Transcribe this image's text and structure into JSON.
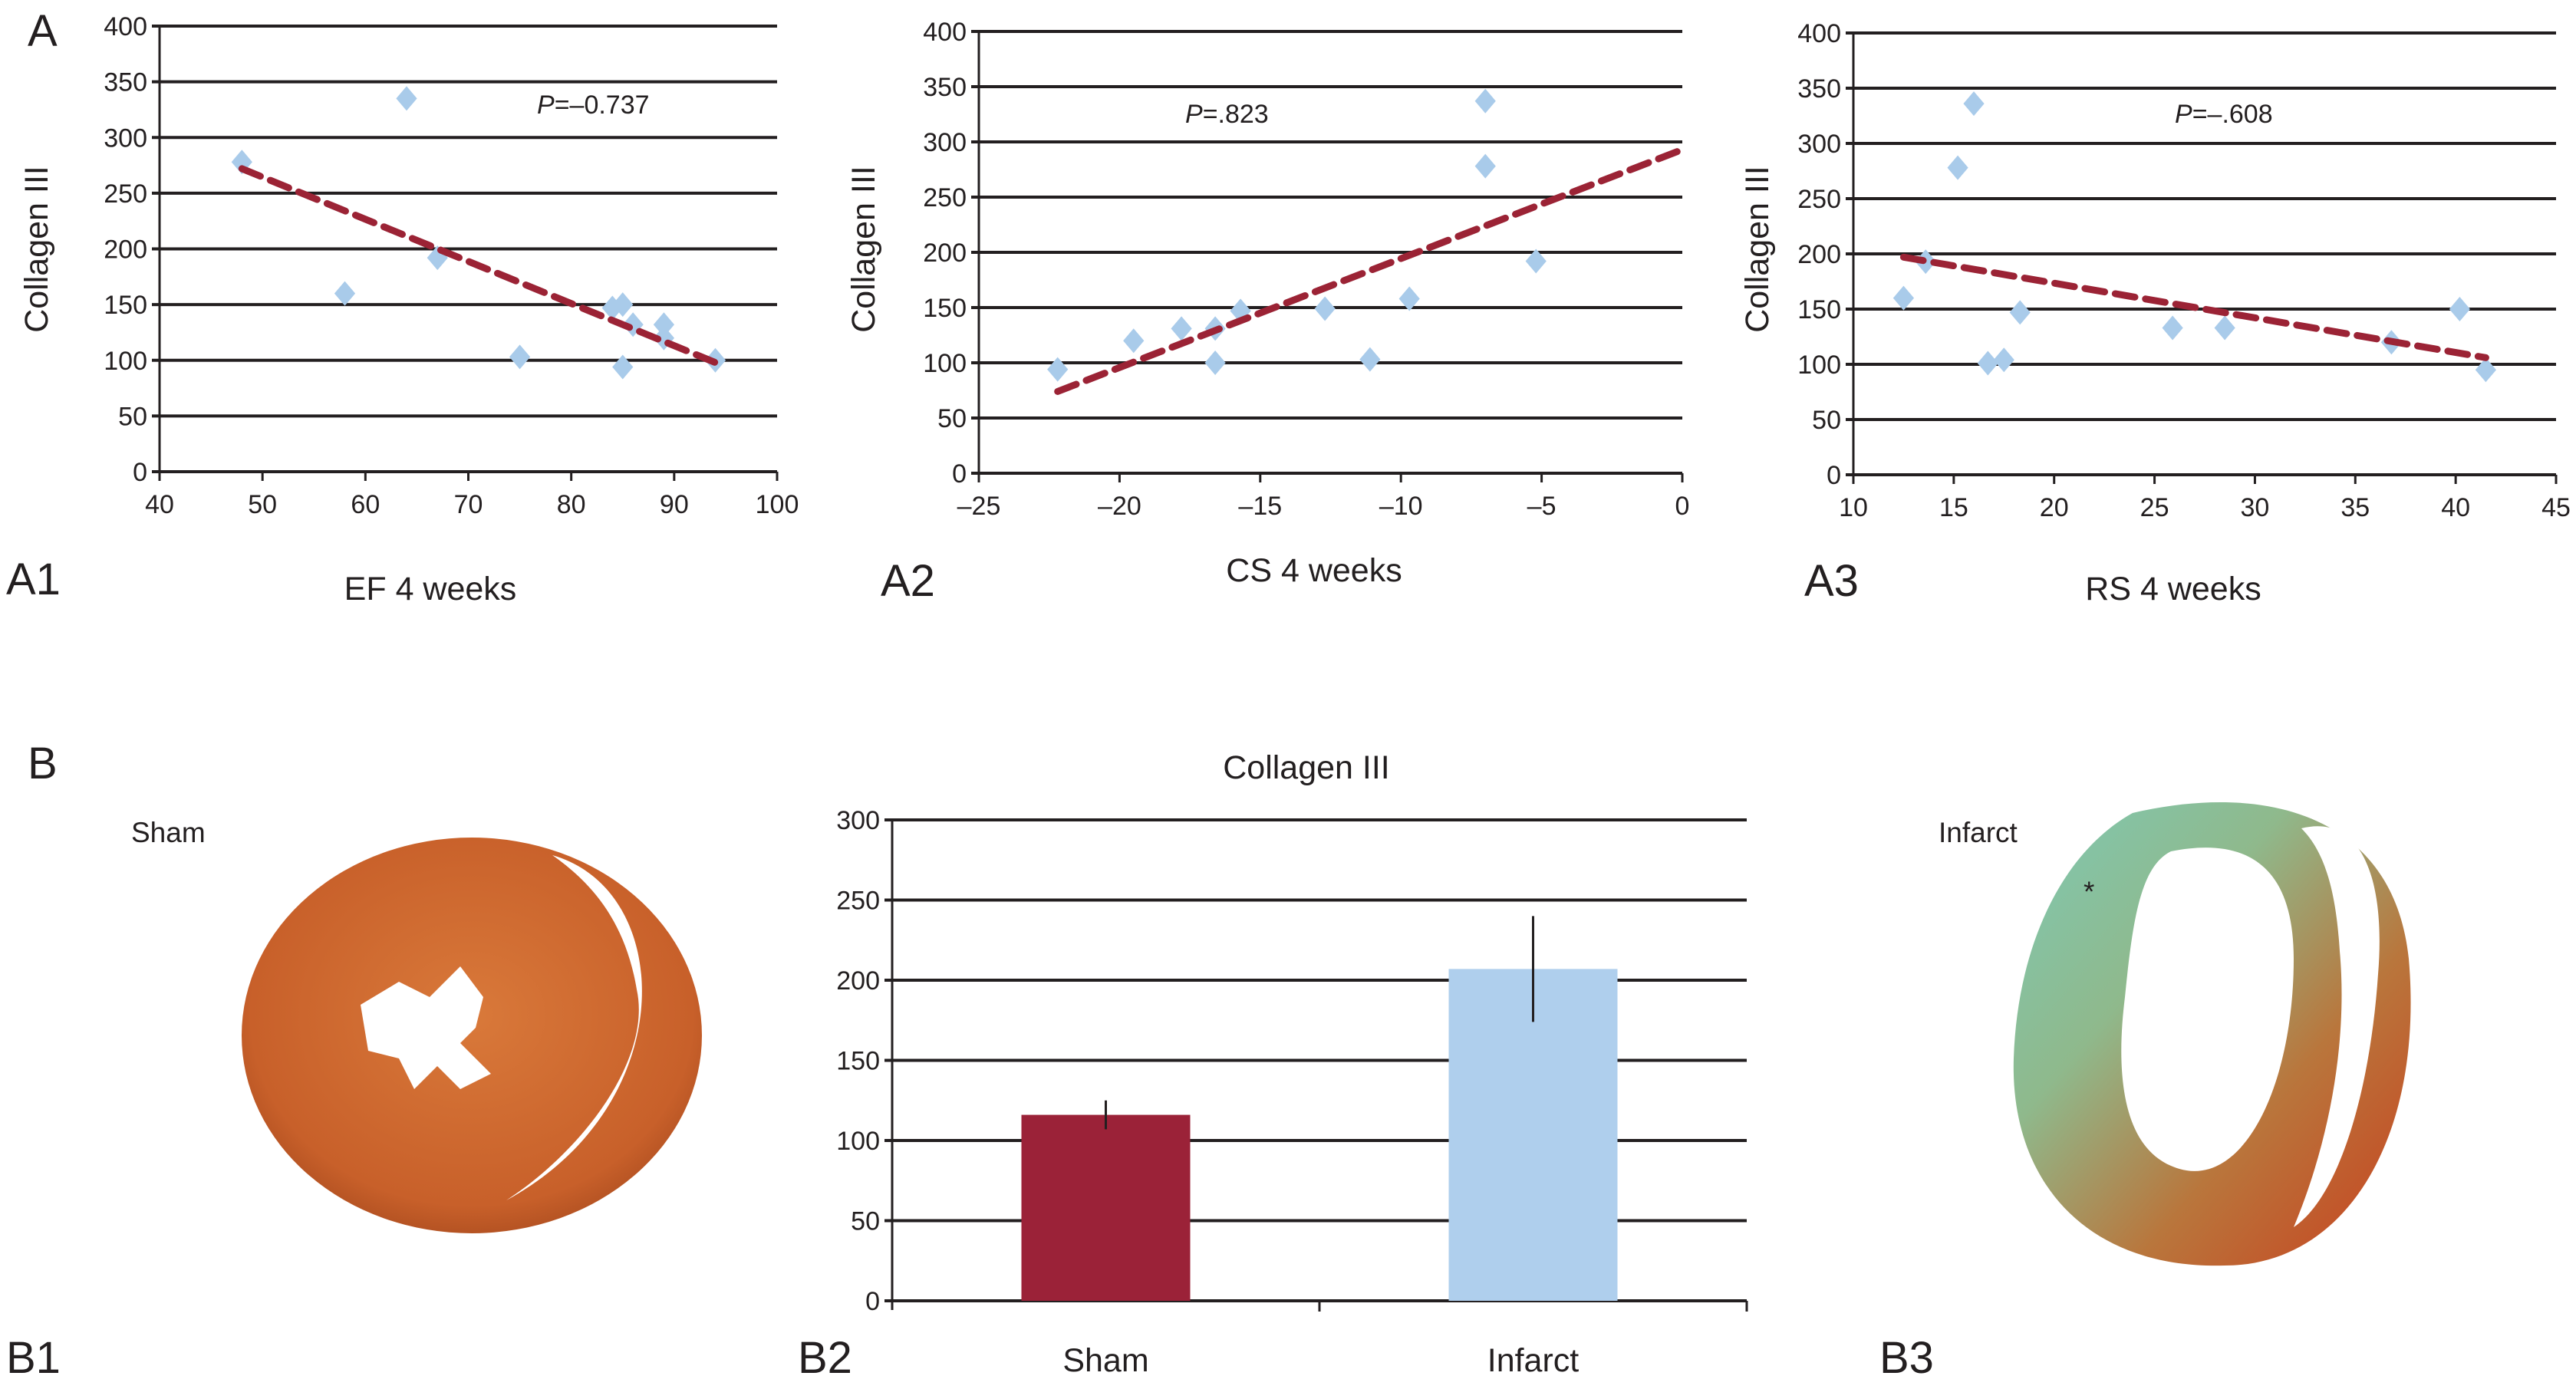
{
  "panel_labels": {
    "A": "A",
    "A1": "A1",
    "A2": "A2",
    "A3": "A3",
    "B": "B",
    "B1": "B1",
    "B2": "B2",
    "B3": "B3"
  },
  "image_labels": {
    "sham": "Sham",
    "infarct": "Infarct",
    "asterisk": "*"
  },
  "colors": {
    "points": "#a9cbea",
    "trend": "#9b2335",
    "sham_bar": "#9b2238",
    "infarct_bar": "#afcfed",
    "sham_tissue": "#c8602a",
    "infarct_fibrosis": "#7fc9b4",
    "infarct_tissue": "#c8401e"
  },
  "chart_data": [
    {
      "id": "A1",
      "type": "scatter",
      "xlabel": "EF 4 weeks",
      "ylabel": "Collagen III",
      "annotation_prefix": "P",
      "annotation_value": "=–0.737",
      "xlim": [
        40,
        100
      ],
      "ylim": [
        0,
        400
      ],
      "xticks": [
        "40",
        "50",
        "60",
        "70",
        "80",
        "90",
        "100"
      ],
      "yticks": [
        "0",
        "50",
        "100",
        "150",
        "200",
        "250",
        "300",
        "350",
        "400"
      ],
      "grid": "horizontal",
      "points": [
        [
          48,
          278
        ],
        [
          64,
          335
        ],
        [
          58,
          160
        ],
        [
          67,
          192
        ],
        [
          75,
          103
        ],
        [
          84,
          147
        ],
        [
          85,
          150
        ],
        [
          86,
          132
        ],
        [
          85,
          94
        ],
        [
          89,
          132
        ],
        [
          89,
          120
        ],
        [
          94,
          100
        ]
      ],
      "trendline": [
        [
          48,
          272
        ],
        [
          94,
          98
        ]
      ]
    },
    {
      "id": "A2",
      "type": "scatter",
      "xlabel": "CS 4 weeks",
      "ylabel": "Collagen III",
      "annotation_prefix": "P",
      "annotation_value": "=.823",
      "xlim": [
        -25,
        0
      ],
      "ylim": [
        0,
        400
      ],
      "xticks": [
        "–25",
        "–20",
        "–15",
        "–10",
        "–5",
        "0"
      ],
      "yticks": [
        "0",
        "50",
        "100",
        "150",
        "200",
        "250",
        "300",
        "350",
        "400"
      ],
      "grid": "horizontal",
      "points": [
        [
          -22.2,
          94
        ],
        [
          -19.5,
          120
        ],
        [
          -17.8,
          131
        ],
        [
          -16.6,
          100
        ],
        [
          -16.6,
          131
        ],
        [
          -15.7,
          147
        ],
        [
          -12.7,
          149
        ],
        [
          -11.1,
          103
        ],
        [
          -9.7,
          158
        ],
        [
          -7,
          337
        ],
        [
          -7,
          278
        ],
        [
          -5.2,
          192
        ]
      ],
      "trendline": [
        [
          -22.2,
          74
        ],
        [
          0,
          293
        ]
      ]
    },
    {
      "id": "A3",
      "type": "scatter",
      "xlabel": "RS 4 weeks",
      "ylabel": "Collagen III",
      "annotation_prefix": "P",
      "annotation_value": "=–.608",
      "xlim": [
        10,
        45
      ],
      "ylim": [
        0,
        400
      ],
      "xticks": [
        "10",
        "15",
        "20",
        "25",
        "30",
        "35",
        "40",
        "45"
      ],
      "yticks": [
        "0",
        "50",
        "100",
        "150",
        "200",
        "250",
        "300",
        "350",
        "400"
      ],
      "grid": "horizontal",
      "points": [
        [
          12.5,
          160
        ],
        [
          13.6,
          193
        ],
        [
          15.2,
          278
        ],
        [
          16,
          336
        ],
        [
          16.7,
          101
        ],
        [
          17.5,
          104
        ],
        [
          18.3,
          147
        ],
        [
          25.9,
          133
        ],
        [
          28.5,
          133
        ],
        [
          36.8,
          120
        ],
        [
          40.2,
          150
        ],
        [
          41.5,
          95
        ]
      ],
      "trendline": [
        [
          12.5,
          197
        ],
        [
          41.5,
          106
        ]
      ]
    },
    {
      "id": "B2",
      "type": "bar",
      "title": "Collagen III",
      "categories": [
        "Sham",
        "Infarct"
      ],
      "values": [
        116,
        207
      ],
      "errors": [
        9,
        33
      ],
      "ylim": [
        0,
        300
      ],
      "yticks": [
        "0",
        "50",
        "100",
        "150",
        "200",
        "250",
        "300"
      ],
      "grid": "horizontal"
    }
  ]
}
